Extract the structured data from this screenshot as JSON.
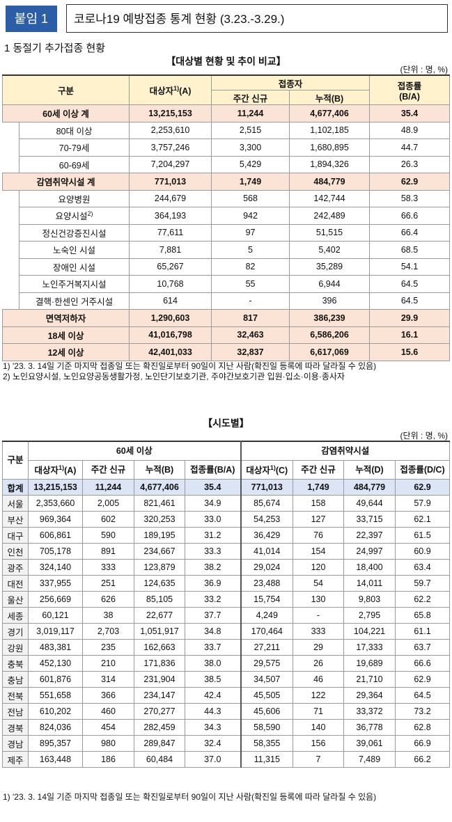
{
  "header": {
    "badge": "붙임 1",
    "title": "코로나19 예방접종 통계 현황 (3.23.-3.29.)"
  },
  "section_title": "1  동절기 추가접종 현황",
  "table1": {
    "title": "【대상별 현황 및 추이 비교】",
    "unit": "(단위 : 명, %)",
    "columns": {
      "category": "구분",
      "target": {
        "text": "대상자",
        "sup": "1)",
        "suffix": "(A)"
      },
      "vaccinated": "접종자",
      "weekly": "주간 신규",
      "cumulative": "누적(B)",
      "rate": [
        "접종률",
        "(B/A)"
      ]
    },
    "rows": [
      [
        "60세 이상 계",
        "13,215,153",
        "11,244",
        "4,677,406",
        "35.4"
      ],
      [
        "80대 이상",
        "2,253,610",
        "2,515",
        "1,102,185",
        "48.9"
      ],
      [
        "70-79세",
        "3,757,246",
        "3,300",
        "1,680,895",
        "44.7"
      ],
      [
        "60-69세",
        "7,204,297",
        "5,429",
        "1,894,326",
        "26.3"
      ],
      [
        "감염취약시설 계",
        "771,013",
        "1,749",
        "484,779",
        "62.9"
      ],
      [
        "요양병원",
        "244,679",
        "568",
        "142,744",
        "58.3"
      ],
      [
        {
          "text": "요양시설",
          "sup": "2)"
        },
        "364,193",
        "942",
        "242,489",
        "66.6"
      ],
      [
        "정신건강증진시설",
        "77,611",
        "97",
        "51,515",
        "66.4"
      ],
      [
        "노숙인 시설",
        "7,881",
        "5",
        "5,402",
        "68.5"
      ],
      [
        "장애인 시설",
        "65,267",
        "82",
        "35,289",
        "54.1"
      ],
      [
        "노인주거복지시설",
        "10,768",
        "55",
        "6,944",
        "64.5"
      ],
      [
        "결핵·한센인 거주시설",
        "614",
        "-",
        "396",
        "64.5"
      ],
      [
        "면역저하자",
        "1,290,603",
        "817",
        "386,239",
        "29.9"
      ],
      [
        "18세 이상",
        "41,016,798",
        "32,463",
        "6,586,206",
        "16.1"
      ],
      [
        "12세 이상",
        "42,401,033",
        "32,837",
        "6,617,069",
        "15.6"
      ]
    ],
    "footnotes": [
      "1)  '23. 3. 14일 기준 마지막 접종일 또는 확진일로부터 90일이 지난 사람(확진일 등록에 따라 달라질 수 있음)",
      "2) 노인요양시설, 노인요양공동생활가정, 노인단기보호기관, 주야간보호기관 입원·입소·이용·종사자"
    ]
  },
  "table2": {
    "title": "【시도별】",
    "unit": "(단위 : 명, %)",
    "columns": {
      "category": "구분",
      "group_a": "60세 이상",
      "group_b": "감염취약시설",
      "sub_a": [
        {
          "text": "대상자",
          "sup": "1)",
          "suffix": "(A)"
        },
        "주간 신규",
        "누적(B)",
        "접종률(B/A)"
      ],
      "sub_b": [
        {
          "text": "대상자",
          "sup": "1)",
          "suffix": "(C)"
        },
        "주간 신규",
        "누적(D)",
        "접종률(D/C)"
      ]
    },
    "rows": [
      [
        "합계",
        "13,215,153",
        "11,244",
        "4,677,406",
        "35.4",
        "771,013",
        "1,749",
        "484,779",
        "62.9"
      ],
      [
        "서울",
        "2,353,660",
        "2,005",
        "821,461",
        "34.9",
        "85,674",
        "158",
        "49,644",
        "57.9"
      ],
      [
        "부산",
        "969,364",
        "602",
        "320,253",
        "33.0",
        "54,253",
        "127",
        "33,715",
        "62.1"
      ],
      [
        "대구",
        "606,861",
        "590",
        "189,195",
        "31.2",
        "36,429",
        "76",
        "22,397",
        "61.5"
      ],
      [
        "인천",
        "705,178",
        "891",
        "234,667",
        "33.3",
        "41,014",
        "154",
        "24,997",
        "60.9"
      ],
      [
        "광주",
        "324,140",
        "333",
        "123,879",
        "38.2",
        "29,024",
        "120",
        "18,400",
        "63.4"
      ],
      [
        "대전",
        "337,955",
        "251",
        "124,635",
        "36.9",
        "23,488",
        "54",
        "14,011",
        "59.7"
      ],
      [
        "울산",
        "256,669",
        "626",
        "85,105",
        "33.2",
        "15,754",
        "130",
        "9,803",
        "62.2"
      ],
      [
        "세종",
        "60,121",
        "38",
        "22,677",
        "37.7",
        "4,249",
        "-",
        "2,795",
        "65.8"
      ],
      [
        "경기",
        "3,019,117",
        "2,703",
        "1,051,917",
        "34.8",
        "170,464",
        "333",
        "104,221",
        "61.1"
      ],
      [
        "강원",
        "483,381",
        "235",
        "162,663",
        "33.7",
        "27,211",
        "29",
        "17,333",
        "63.7"
      ],
      [
        "충북",
        "452,130",
        "210",
        "171,836",
        "38.0",
        "29,575",
        "26",
        "19,689",
        "66.6"
      ],
      [
        "충남",
        "601,876",
        "314",
        "231,904",
        "38.5",
        "34,507",
        "46",
        "21,710",
        "62.9"
      ],
      [
        "전북",
        "551,658",
        "366",
        "234,147",
        "42.4",
        "45,505",
        "122",
        "29,364",
        "64.5"
      ],
      [
        "전남",
        "610,202",
        "460",
        "270,277",
        "44.3",
        "45,606",
        "71",
        "33,372",
        "73.2"
      ],
      [
        "경북",
        "824,036",
        "454",
        "282,459",
        "34.3",
        "58,590",
        "140",
        "36,778",
        "62.8"
      ],
      [
        "경남",
        "895,357",
        "980",
        "289,847",
        "32.4",
        "58,355",
        "156",
        "39,061",
        "66.9"
      ],
      [
        "제주",
        "163,448",
        "186",
        "60,484",
        "37.0",
        "11,315",
        "7",
        "7,489",
        "66.2"
      ]
    ],
    "footnotes": [
      "1)  '23. 3. 14일 기준 마지막 접종일 또는 확진일로부터 90일이 지난 사람(확진일 등록에 따라 달라질 수 있음)"
    ]
  }
}
